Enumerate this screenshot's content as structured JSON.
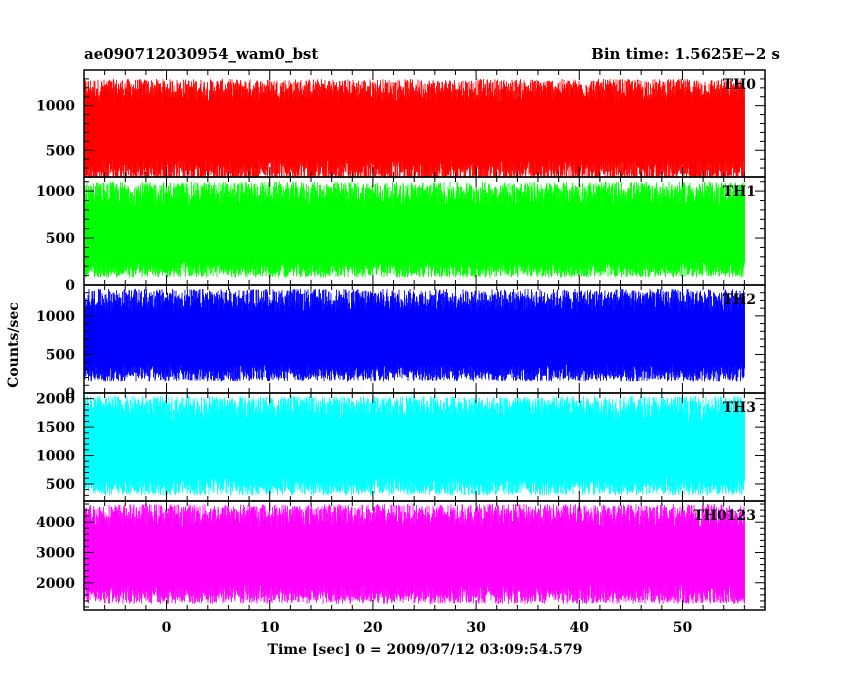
{
  "chart_data": {
    "type": "line",
    "title": "ae090712030954_wam0_bst",
    "bin_time": "Bin time: 1.5625E−2 s",
    "xlabel": "Time [sec] 0 = 2009/07/12 03:09:54.579",
    "ylabel": "Counts/sec",
    "xlim": [
      -8,
      58
    ],
    "x_ticks": [
      0,
      10,
      20,
      30,
      40,
      50
    ],
    "x_range": [
      -8,
      56
    ],
    "grid": false,
    "panels": [
      {
        "name": "TH0",
        "color": "#ff0000",
        "ylim": [
          200,
          1400
        ],
        "y_ticks": [
          500,
          1000
        ],
        "y_tick_labels": [
          "500",
          "1000"
        ],
        "typical_range": [
          150,
          1300
        ],
        "mean": 720
      },
      {
        "name": "TH1",
        "color": "#00ff00",
        "ylim": [
          0,
          1150
        ],
        "y_ticks": [
          0,
          500,
          1000
        ],
        "y_tick_labels": [
          "0",
          "500",
          "1000"
        ],
        "typical_range": [
          80,
          1100
        ],
        "mean": 480
      },
      {
        "name": "TH2",
        "color": "#0000ff",
        "ylim": [
          0,
          1400
        ],
        "y_ticks": [
          0,
          500,
          1000
        ],
        "y_tick_labels": [
          "0",
          "500",
          "1000"
        ],
        "typical_range": [
          150,
          1350
        ],
        "mean": 650
      },
      {
        "name": "TH3",
        "color": "#00ffff",
        "ylim": [
          200,
          2100
        ],
        "y_ticks": [
          500,
          1000,
          1500,
          2000
        ],
        "y_tick_labels": [
          "500",
          "1000",
          "1500",
          "2000"
        ],
        "typical_range": [
          300,
          2050
        ],
        "mean": 1050
      },
      {
        "name": "TH0123",
        "color": "#ff00ff",
        "ylim": [
          1100,
          4700
        ],
        "y_ticks": [
          2000,
          3000,
          4000
        ],
        "y_tick_labels": [
          "2000",
          "3000",
          "4000"
        ],
        "typical_range": [
          1300,
          4600
        ],
        "mean": 2800
      }
    ]
  }
}
